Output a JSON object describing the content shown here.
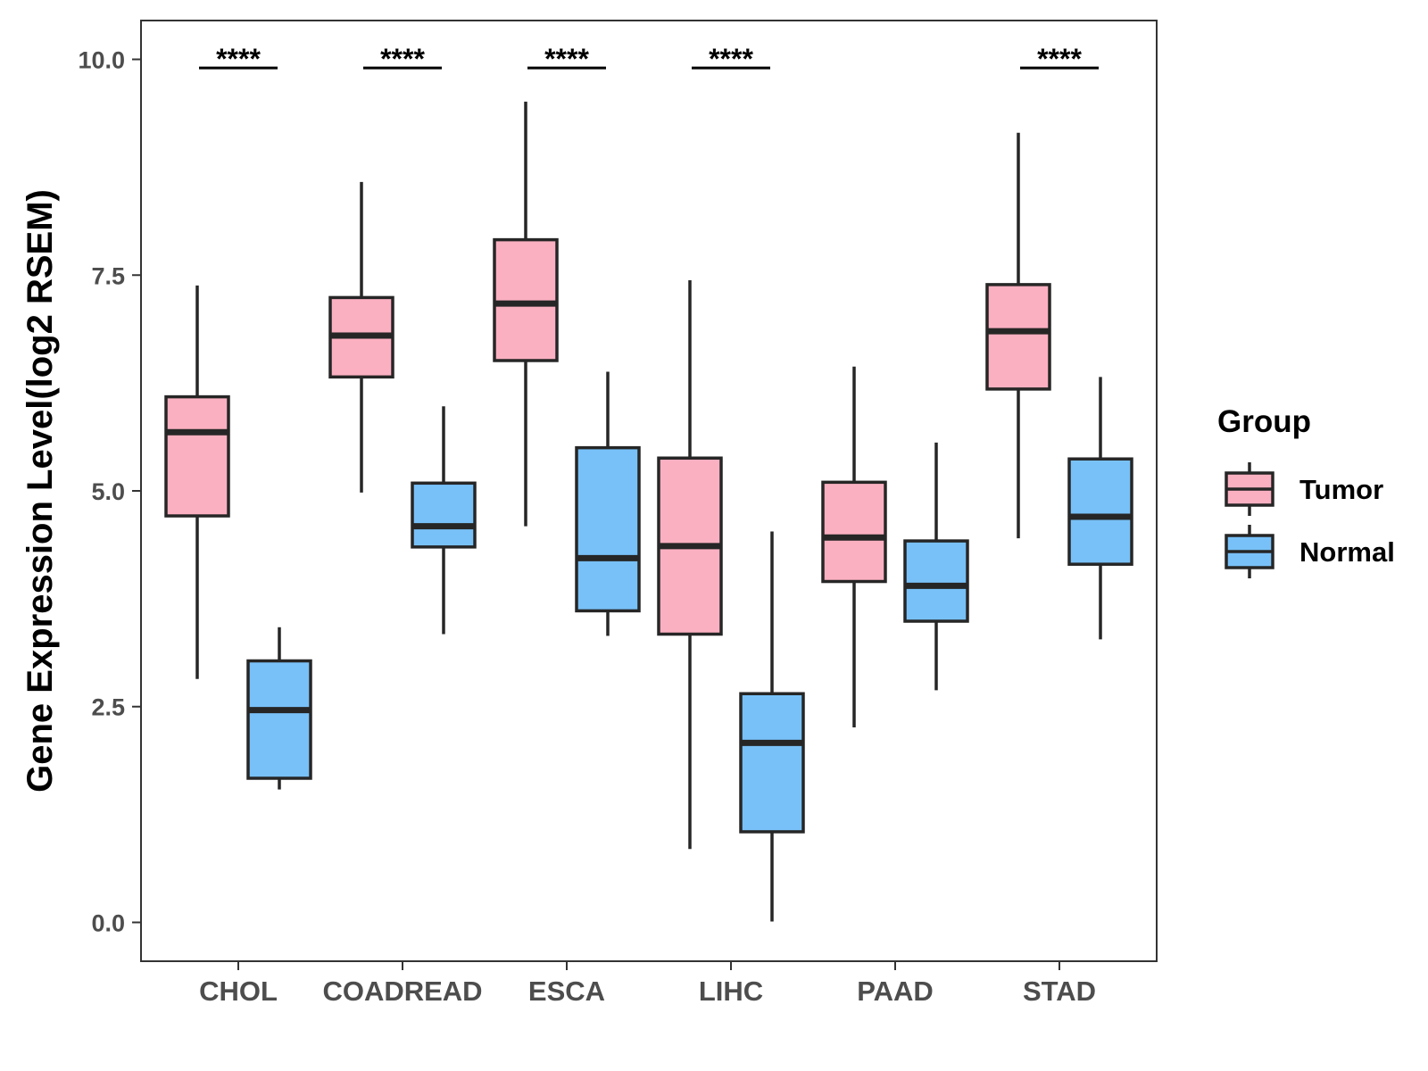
{
  "chart_data": {
    "type": "boxplot",
    "ylabel": "Gene Expression Level(log2 RSEM)",
    "xlabel": "",
    "ylim": [
      -0.45,
      10.45
    ],
    "yticks": [
      0.0,
      2.5,
      5.0,
      7.5,
      10.0
    ],
    "ytick_labels": [
      "0.0",
      "2.5",
      "5.0",
      "7.5",
      "10.0"
    ],
    "categories": [
      "CHOL",
      "COADREAD",
      "ESCA",
      "LIHC",
      "PAAD",
      "STAD"
    ],
    "grid": false,
    "legend": {
      "title": "Group",
      "position": "right",
      "entries": [
        {
          "name": "Tumor",
          "color": "#fbb0c1"
        },
        {
          "name": "Normal",
          "color": "#78c1f8"
        }
      ]
    },
    "series": [
      {
        "name": "Tumor",
        "color": "#fbb0c1",
        "boxes": [
          {
            "category": "CHOL",
            "whisker_low": 2.82,
            "q1": 4.71,
            "median": 5.68,
            "q3": 6.09,
            "whisker_high": 7.38
          },
          {
            "category": "COADREAD",
            "whisker_low": 4.98,
            "q1": 6.32,
            "median": 6.8,
            "q3": 7.24,
            "whisker_high": 8.58
          },
          {
            "category": "ESCA",
            "whisker_low": 4.59,
            "q1": 6.51,
            "median": 7.17,
            "q3": 7.91,
            "whisker_high": 9.51
          },
          {
            "category": "LIHC",
            "whisker_low": 0.85,
            "q1": 3.34,
            "median": 4.36,
            "q3": 5.38,
            "whisker_high": 7.44
          },
          {
            "category": "PAAD",
            "whisker_low": 2.26,
            "q1": 3.95,
            "median": 4.46,
            "q3": 5.1,
            "whisker_high": 6.44
          },
          {
            "category": "STAD",
            "whisker_low": 4.45,
            "q1": 6.18,
            "median": 6.85,
            "q3": 7.39,
            "whisker_high": 9.15
          }
        ]
      },
      {
        "name": "Normal",
        "color": "#78c1f8",
        "boxes": [
          {
            "category": "CHOL",
            "whisker_low": 1.54,
            "q1": 1.67,
            "median": 2.46,
            "q3": 3.03,
            "whisker_high": 3.42
          },
          {
            "category": "COADREAD",
            "whisker_low": 3.34,
            "q1": 4.35,
            "median": 4.59,
            "q3": 5.09,
            "whisker_high": 5.98
          },
          {
            "category": "ESCA",
            "whisker_low": 3.32,
            "q1": 3.61,
            "median": 4.22,
            "q3": 5.5,
            "whisker_high": 6.38
          },
          {
            "category": "LIHC",
            "whisker_low": 0.01,
            "q1": 1.05,
            "median": 2.08,
            "q3": 2.65,
            "whisker_high": 4.53
          },
          {
            "category": "PAAD",
            "whisker_low": 2.69,
            "q1": 3.49,
            "median": 3.9,
            "q3": 4.42,
            "whisker_high": 5.56
          },
          {
            "category": "STAD",
            "whisker_low": 3.28,
            "q1": 4.15,
            "median": 4.7,
            "q3": 5.37,
            "whisker_high": 6.32
          }
        ]
      }
    ],
    "annotations": [
      {
        "category": "CHOL",
        "text": "****",
        "y": 9.9
      },
      {
        "category": "COADREAD",
        "text": "****",
        "y": 9.9
      },
      {
        "category": "ESCA",
        "text": "****",
        "y": 9.9
      },
      {
        "category": "LIHC",
        "text": "****",
        "y": 9.9
      },
      {
        "category": "STAD",
        "text": "****",
        "y": 9.9
      }
    ]
  }
}
